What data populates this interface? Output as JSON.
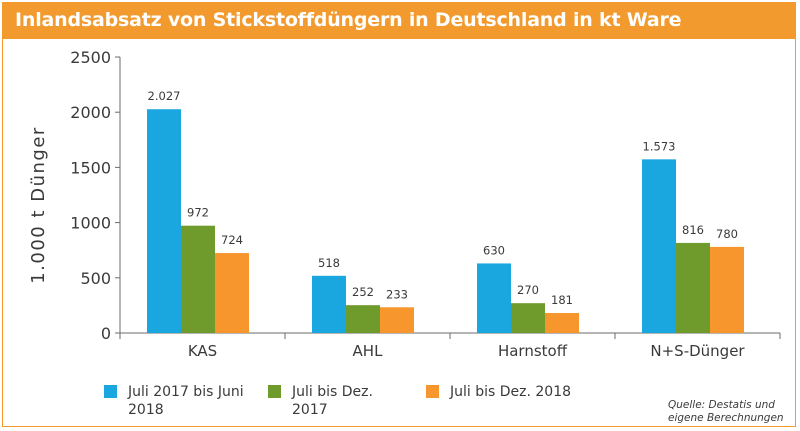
{
  "title": "Inlandsabsatz von Stickstoffdüngern in Deutschland in kt Ware",
  "source": "Quelle: Destatis und eigene Berechnungen",
  "colors": {
    "accent": "#f29a2e",
    "series": [
      "#1aa7e0",
      "#6f9a2c",
      "#f7962c"
    ]
  },
  "chart_data": {
    "type": "bar",
    "categories": [
      "KAS",
      "AHL",
      "Harnstoff",
      "N+S-Dünger"
    ],
    "series": [
      {
        "name": "Juli 2017 bis Juni 2018",
        "values": [
          2027,
          518,
          630,
          1573
        ],
        "labels": [
          "2.027",
          "518",
          "630",
          "1.573"
        ]
      },
      {
        "name": "Juli bis Dez. 2017",
        "values": [
          972,
          252,
          270,
          816
        ],
        "labels": [
          "972",
          "252",
          "270",
          "816"
        ]
      },
      {
        "name": "Juli bis Dez. 2018",
        "values": [
          724,
          233,
          181,
          780
        ],
        "labels": [
          "724",
          "233",
          "181",
          "780"
        ]
      }
    ],
    "ylabel": "1.000 t Dünger",
    "ylim": [
      0,
      2500
    ],
    "yticks": [
      0,
      500,
      1000,
      1500,
      2000,
      2500
    ],
    "legend_position": "bottom",
    "grid": false
  }
}
